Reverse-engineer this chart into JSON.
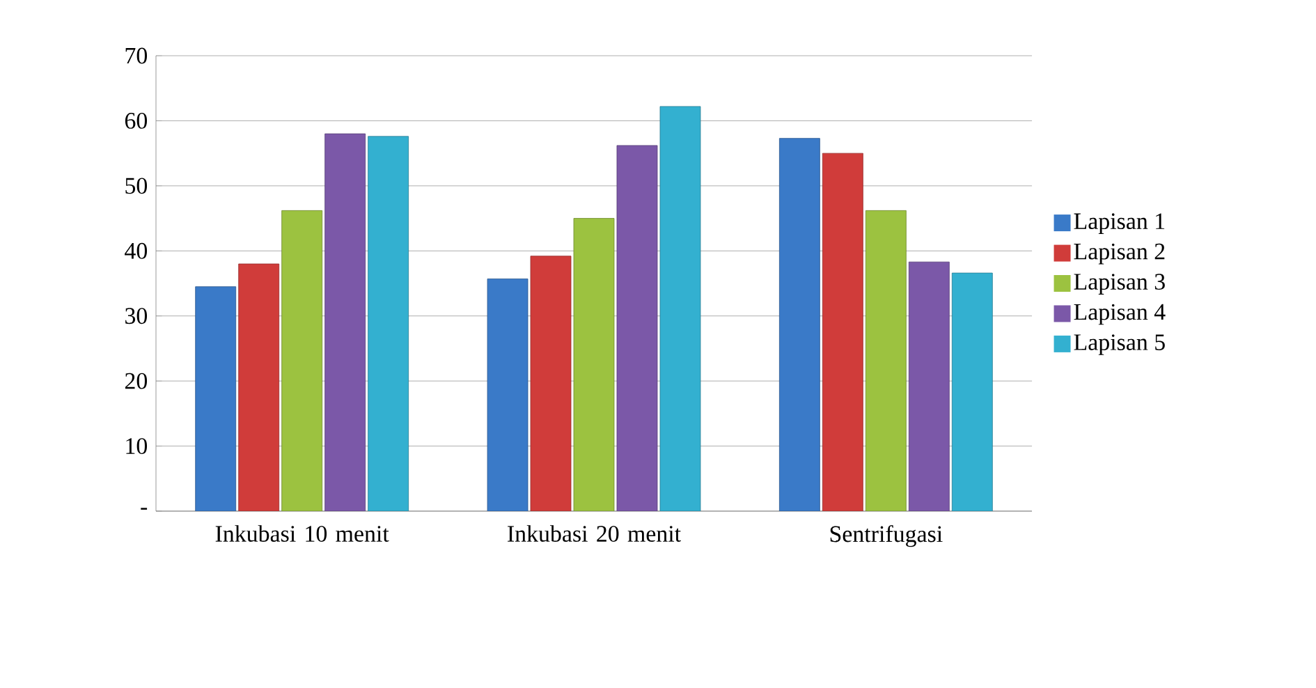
{
  "chart_data": {
    "type": "bar",
    "categories": [
      "Inkubasi 10 menit",
      "Inkubasi 20 menit",
      "Sentrifugasi"
    ],
    "series": [
      {
        "name": "Lapisan 1",
        "color": "#3a7ac8",
        "values": [
          34.5,
          35.7,
          57.3
        ]
      },
      {
        "name": "Lapisan 2",
        "color": "#d03c3a",
        "values": [
          38,
          39.2,
          55
        ]
      },
      {
        "name": "Lapisan 3",
        "color": "#9cc240",
        "values": [
          46.2,
          45,
          46.2
        ]
      },
      {
        "name": "Lapisan 4",
        "color": "#7b58a8",
        "values": [
          58,
          56.2,
          38.3
        ]
      },
      {
        "name": "Lapisan 5",
        "color": "#33b0d0",
        "values": [
          57.6,
          62.2,
          36.6
        ]
      }
    ],
    "ylim": [
      0,
      70
    ],
    "yticks": [
      {
        "value": 0,
        "label": "-"
      },
      10,
      20,
      30,
      40,
      50,
      60,
      70
    ],
    "grid": "y",
    "legend": "right"
  }
}
